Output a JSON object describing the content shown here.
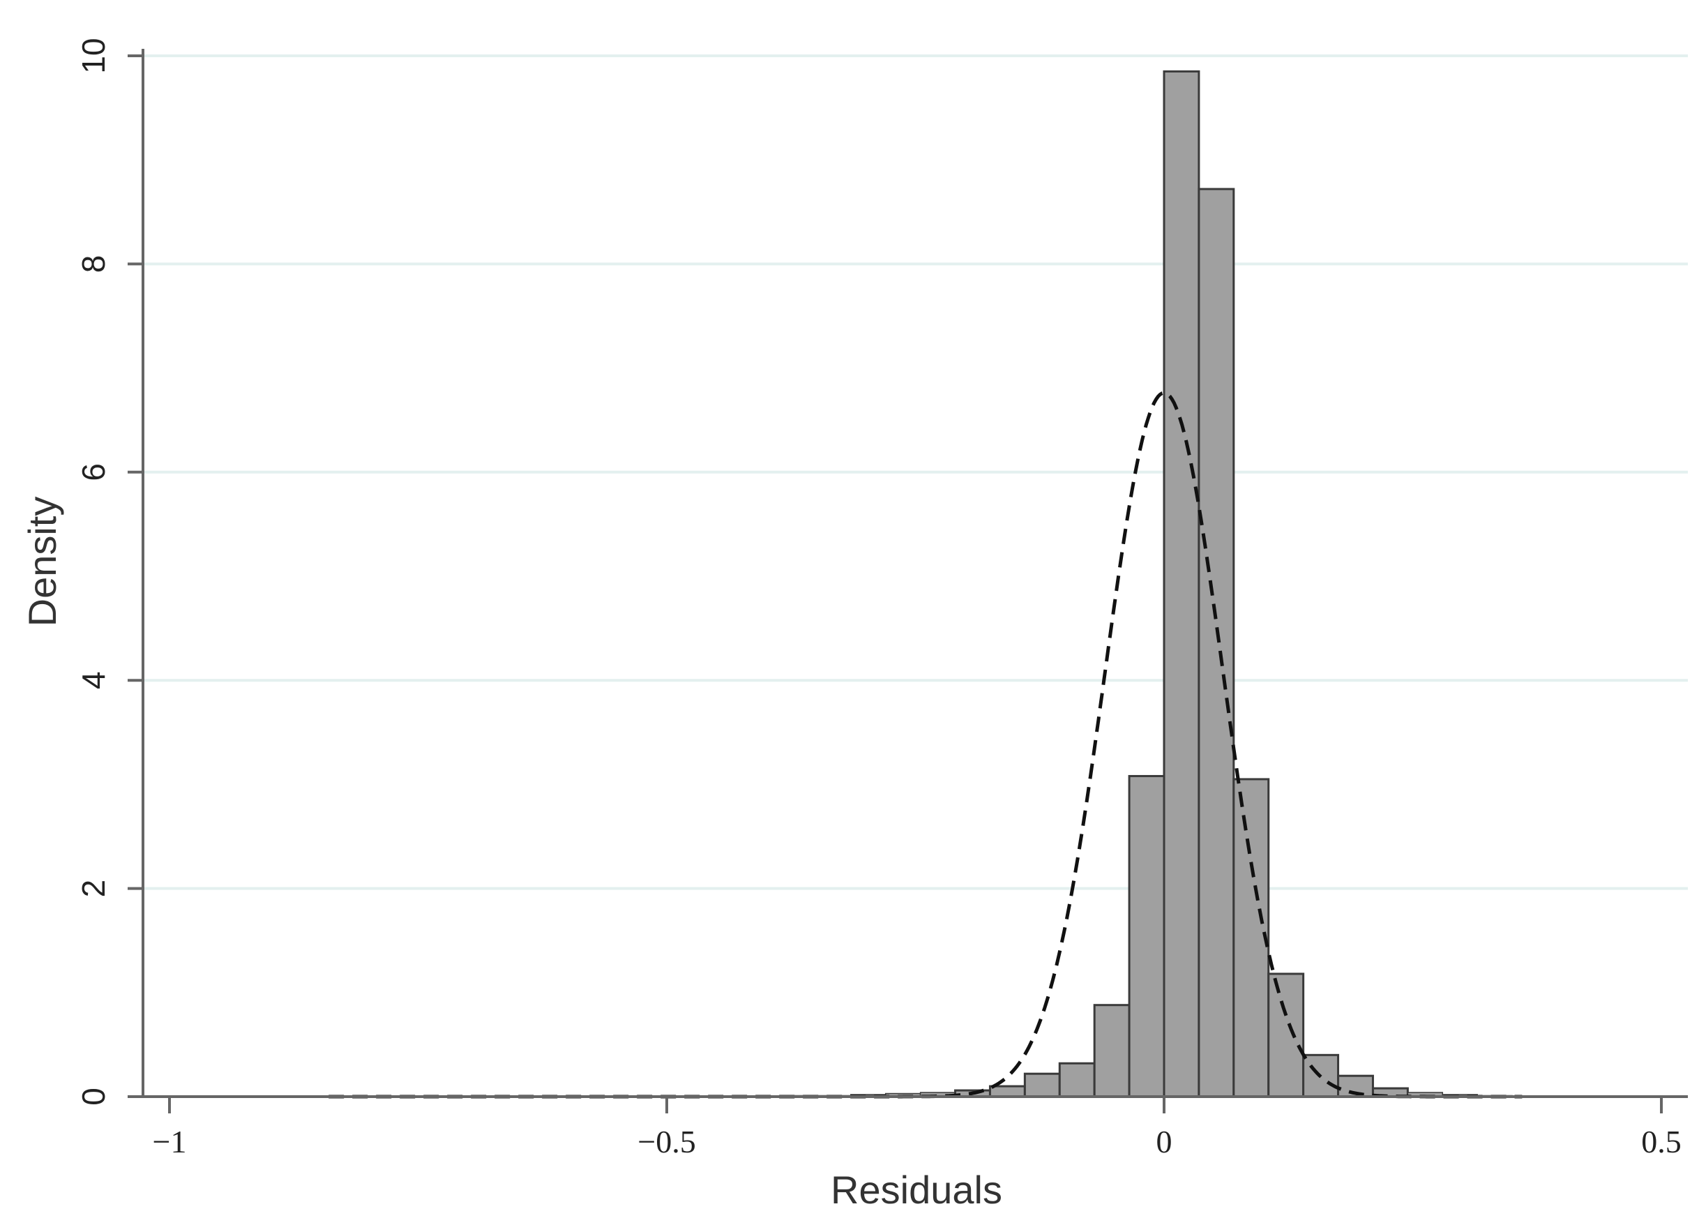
{
  "chart_data": {
    "type": "bar",
    "title": "",
    "xlabel": "Residuals",
    "ylabel": "Density",
    "xlim": [
      -1,
      0.5
    ],
    "ylim": [
      0,
      10
    ],
    "grid": "horizontal",
    "x_ticks": [
      {
        "value": -1,
        "label": "−1"
      },
      {
        "value": -0.5,
        "label": "−0.5"
      },
      {
        "value": 0,
        "label": "0"
      },
      {
        "value": 0.5,
        "label": "0.5"
      }
    ],
    "y_ticks": [
      {
        "value": 0,
        "label": "0"
      },
      {
        "value": 2,
        "label": "2"
      },
      {
        "value": 4,
        "label": "4"
      },
      {
        "value": 6,
        "label": "6"
      },
      {
        "value": 8,
        "label": "8"
      },
      {
        "value": 10,
        "label": "10"
      }
    ],
    "histogram": {
      "bin_width": 0.035,
      "bins": [
        {
          "x0": -0.84,
          "density": 0.003
        },
        {
          "x0": -0.805,
          "density": 0.003
        },
        {
          "x0": -0.77,
          "density": 0.003
        },
        {
          "x0": -0.735,
          "density": 0.003
        },
        {
          "x0": -0.7,
          "density": 0.003
        },
        {
          "x0": -0.665,
          "density": 0.003
        },
        {
          "x0": -0.63,
          "density": 0.003
        },
        {
          "x0": -0.595,
          "density": 0.003
        },
        {
          "x0": -0.56,
          "density": 0.003
        },
        {
          "x0": -0.525,
          "density": 0.003
        },
        {
          "x0": -0.49,
          "density": 0.005
        },
        {
          "x0": -0.455,
          "density": 0.005
        },
        {
          "x0": -0.42,
          "density": 0.005
        },
        {
          "x0": -0.385,
          "density": 0.01
        },
        {
          "x0": -0.35,
          "density": 0.01
        },
        {
          "x0": -0.315,
          "density": 0.02
        },
        {
          "x0": -0.28,
          "density": 0.03
        },
        {
          "x0": -0.245,
          "density": 0.04
        },
        {
          "x0": -0.21,
          "density": 0.06
        },
        {
          "x0": -0.175,
          "density": 0.1
        },
        {
          "x0": -0.14,
          "density": 0.22
        },
        {
          "x0": -0.105,
          "density": 0.32
        },
        {
          "x0": -0.07,
          "density": 0.88
        },
        {
          "x0": -0.035,
          "density": 3.08
        },
        {
          "x0": 0.0,
          "density": 9.85
        },
        {
          "x0": 0.035,
          "density": 8.72
        },
        {
          "x0": 0.07,
          "density": 3.05
        },
        {
          "x0": 0.105,
          "density": 1.18
        },
        {
          "x0": 0.14,
          "density": 0.4
        },
        {
          "x0": 0.175,
          "density": 0.2
        },
        {
          "x0": 0.21,
          "density": 0.08
        },
        {
          "x0": 0.245,
          "density": 0.04
        },
        {
          "x0": 0.28,
          "density": 0.02
        },
        {
          "x0": 0.315,
          "density": 0.01
        },
        {
          "x0": 0.35,
          "density": 0.005
        }
      ]
    },
    "normal_curve": {
      "mean": 0.0,
      "sd": 0.059,
      "x_range": [
        -0.84,
        0.36
      ],
      "style": "dashed"
    },
    "colors": {
      "bar_fill": "#a0a0a0",
      "bar_stroke": "#3a3a3a",
      "curve": "#111111",
      "axis": "#666666",
      "grid": "#e3f0ef"
    }
  }
}
